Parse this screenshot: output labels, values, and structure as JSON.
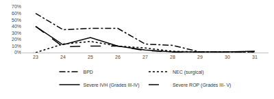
{
  "chart_data": {
    "type": "line",
    "categories": [
      "23",
      "24",
      "25",
      "26",
      "27",
      "28",
      "29",
      "30",
      "31"
    ],
    "series": [
      {
        "name": "BPD",
        "color": "#000000",
        "line_style": "dashdot",
        "values": [
          60,
          35,
          37,
          37,
          13,
          11,
          1,
          1,
          1
        ]
      },
      {
        "name": "NEC (surgical)",
        "color": "#000000",
        "line_style": "dot",
        "values": [
          0,
          13,
          17,
          10,
          7,
          2,
          1,
          1,
          1
        ]
      },
      {
        "name": "Severe IVH (Grades III-IV)",
        "color": "#000000",
        "line_style": "solid",
        "values": [
          40,
          12,
          23,
          10,
          4,
          1,
          1,
          1,
          2
        ]
      },
      {
        "name": "Severe ROP (Grades III- V)",
        "color": "#000000",
        "line_style": "longdash",
        "values": [
          40,
          9,
          10,
          10,
          3,
          1,
          0,
          0,
          0
        ]
      }
    ],
    "ylim": [
      0,
      70
    ],
    "yticks": [
      {
        "value": 0,
        "label": "0%"
      },
      {
        "value": 10,
        "label": "10%"
      },
      {
        "value": 20,
        "label": "20%"
      },
      {
        "value": 30,
        "label": "30%"
      },
      {
        "value": 40,
        "label": "40%"
      },
      {
        "value": 50,
        "label": "50%"
      },
      {
        "value": 60,
        "label": "60%"
      },
      {
        "value": 70,
        "label": "70%"
      }
    ],
    "grid": false,
    "legend": "bottom"
  }
}
